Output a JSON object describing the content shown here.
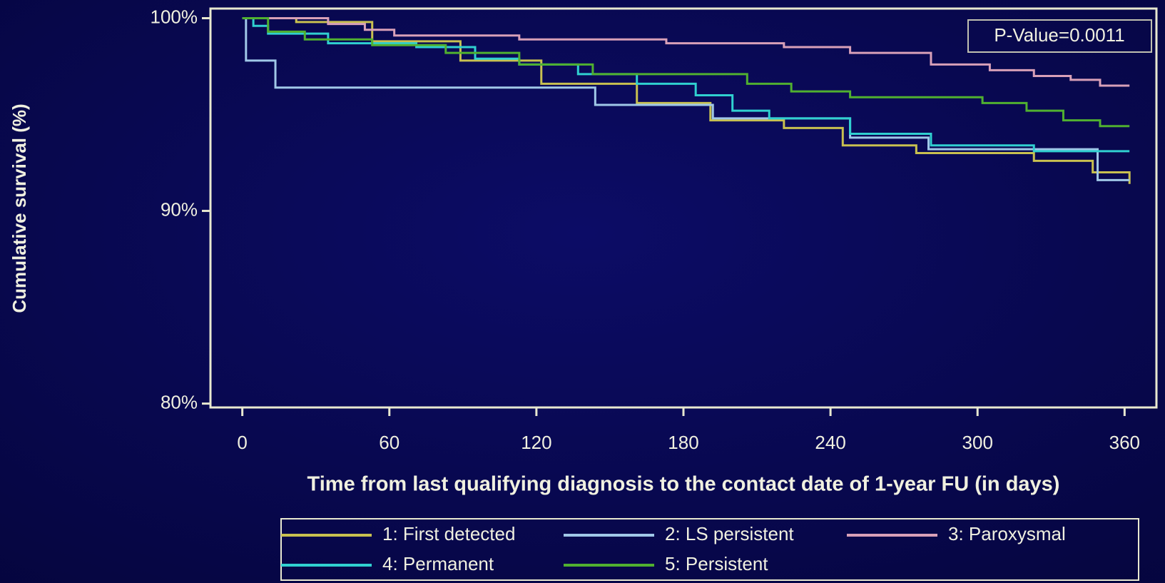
{
  "chart_data": {
    "type": "step-line",
    "x_label": "Time from last qualifying diagnosis to the contact date of 1-year FU (in days)",
    "y_label": "Cumulative survival (%)",
    "annotation": "P-Value=0.0011",
    "xlim": [
      -13,
      373
    ],
    "ylim": [
      79.8,
      100.5
    ],
    "xticks": [
      0,
      60,
      120,
      180,
      240,
      300,
      360
    ],
    "yticks": [
      {
        "value": 80,
        "label": "80%"
      },
      {
        "value": 90,
        "label": "90%"
      },
      {
        "value": 100,
        "label": "100%"
      }
    ],
    "legend": "bottom",
    "series": [
      {
        "name": "1: First detected",
        "color": "#c8c050",
        "x": [
          0,
          22,
          53,
          89,
          122,
          161,
          191,
          221,
          245,
          275,
          323,
          347,
          362
        ],
        "values": [
          100,
          99.8,
          98.8,
          97.8,
          96.6,
          95.6,
          94.7,
          94.3,
          93.4,
          93.0,
          92.6,
          92.0,
          91.4
        ]
      },
      {
        "name": "2: LS persistent",
        "color": "#a0c8e8",
        "x": [
          0,
          1.5,
          13.5,
          144,
          192,
          248,
          280,
          349,
          362
        ],
        "values": [
          100,
          97.8,
          96.4,
          95.5,
          94.8,
          93.8,
          93.2,
          91.6,
          91.6
        ]
      },
      {
        "name": "3: Paroxysmal",
        "color": "#d8a0b8",
        "x": [
          0,
          35,
          50,
          62,
          113,
          173,
          221,
          248,
          281,
          305,
          323,
          338,
          350,
          362
        ],
        "values": [
          100,
          99.7,
          99.4,
          99.1,
          98.9,
          98.7,
          98.5,
          98.2,
          97.6,
          97.3,
          97.0,
          96.8,
          96.5,
          96.5
        ]
      },
      {
        "name": "4: Permanent",
        "color": "#30d0d0",
        "x": [
          0,
          4.5,
          10.5,
          35,
          71,
          95,
          113,
          137,
          161,
          185,
          200,
          215,
          248,
          281,
          323,
          362
        ],
        "values": [
          100,
          99.6,
          99.2,
          98.7,
          98.5,
          97.9,
          97.6,
          97.1,
          96.6,
          96.0,
          95.2,
          94.8,
          94.0,
          93.4,
          93.1,
          93.1
        ]
      },
      {
        "name": "5: Persistent",
        "color": "#50b030",
        "x": [
          0,
          10.5,
          25.5,
          53,
          83,
          113,
          143,
          206,
          224,
          248,
          302,
          320,
          335,
          350,
          362
        ],
        "values": [
          100,
          99.3,
          98.9,
          98.6,
          98.2,
          97.6,
          97.1,
          96.6,
          96.2,
          95.9,
          95.6,
          95.2,
          94.7,
          94.4,
          94.4
        ]
      }
    ]
  }
}
